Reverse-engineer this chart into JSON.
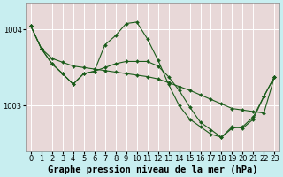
{
  "title": "Graphe pression niveau de la mer (hPa)",
  "bg_color": "#c8eef0",
  "plot_bg": "#e8d8d8",
  "grid_color": "#ffffff",
  "line_color": "#1a5c1a",
  "marker_color": "#1a5c1a",
  "xlim": [
    -0.5,
    23.5
  ],
  "ylim": [
    1002.4,
    1004.35
  ],
  "yticks": [
    1003,
    1004
  ],
  "xticks": [
    0,
    1,
    2,
    3,
    4,
    5,
    6,
    7,
    8,
    9,
    10,
    11,
    12,
    13,
    14,
    15,
    16,
    17,
    18,
    19,
    20,
    21,
    22,
    23
  ],
  "line1_x": [
    0,
    1,
    2,
    3,
    4,
    5,
    6,
    7,
    8,
    9,
    10,
    11,
    12,
    13,
    14,
    15,
    16,
    17,
    18,
    19,
    20,
    21,
    22,
    23
  ],
  "line1_y": [
    1004.05,
    1003.75,
    1003.62,
    1003.57,
    1003.52,
    1003.5,
    1003.48,
    1003.46,
    1003.44,
    1003.42,
    1003.4,
    1003.38,
    1003.35,
    1003.3,
    1003.25,
    1003.2,
    1003.14,
    1003.08,
    1003.02,
    1002.96,
    1002.94,
    1002.92,
    1002.9,
    1003.38
  ],
  "line2_x": [
    0,
    1,
    2,
    3,
    4,
    5,
    6,
    7,
    8,
    9,
    10,
    11,
    12,
    13,
    14,
    15,
    16,
    17,
    18,
    19,
    20,
    21,
    22,
    23
  ],
  "line2_y": [
    1004.05,
    1003.75,
    1003.55,
    1003.42,
    1003.28,
    1003.42,
    1003.45,
    1003.8,
    1003.92,
    1004.08,
    1004.1,
    1003.88,
    1003.6,
    1003.28,
    1003.0,
    1002.82,
    1002.72,
    1002.62,
    1002.58,
    1002.7,
    1002.72,
    1002.85,
    1003.12,
    1003.38
  ],
  "line3_x": [
    0,
    1,
    2,
    3,
    4,
    5,
    6,
    7,
    8,
    9,
    10,
    11,
    12,
    13,
    14,
    15,
    16,
    17,
    18,
    19,
    20,
    21,
    22,
    23
  ],
  "line3_y": [
    1004.05,
    1003.75,
    1003.55,
    1003.42,
    1003.28,
    1003.42,
    1003.45,
    1003.5,
    1003.55,
    1003.58,
    1003.58,
    1003.58,
    1003.52,
    1003.38,
    1003.2,
    1002.98,
    1002.78,
    1002.68,
    1002.58,
    1002.72,
    1002.7,
    1002.82,
    1003.12,
    1003.38
  ],
  "title_fontsize": 7.5,
  "tick_fontsize": 6
}
